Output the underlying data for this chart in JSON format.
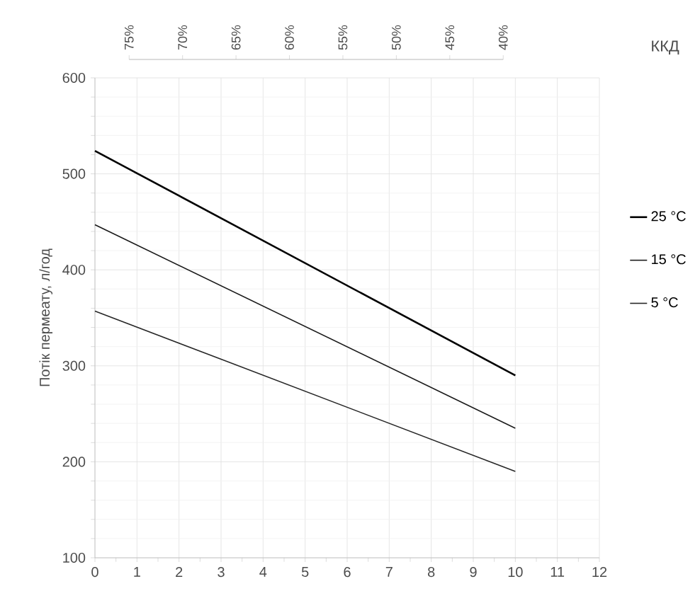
{
  "chart_data": {
    "type": "line",
    "ylabel": "Потік пермеату, л/год",
    "x2label": "ККД",
    "x": [
      0,
      10
    ],
    "series": [
      {
        "name": "25 °C",
        "color": "#000000",
        "values": [
          524,
          290
        ]
      },
      {
        "name": "15 °C",
        "color": "#1a1a1a",
        "values": [
          447,
          235
        ]
      },
      {
        "name": "5 °C",
        "color": "#262626",
        "values": [
          357,
          190
        ]
      }
    ],
    "xlim": [
      0,
      12
    ],
    "xticks": [
      0,
      1,
      2,
      3,
      4,
      5,
      6,
      7,
      8,
      9,
      10,
      11,
      12
    ],
    "ylim": [
      100,
      600
    ],
    "yticks": [
      100,
      200,
      300,
      400,
      500,
      600
    ],
    "x2lim": [
      78.2,
      31.0
    ],
    "x2ticks": [
      {
        "value": 75,
        "label": "75%"
      },
      {
        "value": 70,
        "label": "70%"
      },
      {
        "value": 65,
        "label": "65%"
      },
      {
        "value": 60,
        "label": "60%"
      },
      {
        "value": 55,
        "label": "55%"
      },
      {
        "value": 50,
        "label": "50%"
      },
      {
        "value": 45,
        "label": "45%"
      },
      {
        "value": 40,
        "label": "40%"
      }
    ],
    "grid": true,
    "legend": "right",
    "marker": "none",
    "line_style": "solid"
  }
}
